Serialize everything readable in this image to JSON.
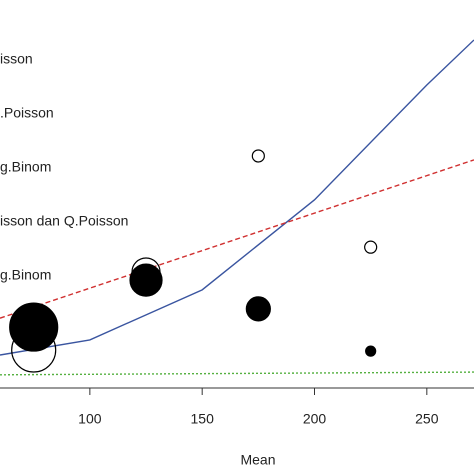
{
  "chart_data": {
    "type": "scatter",
    "x_label": "Mean",
    "legend_labels": [
      "isson",
      ".Poisson",
      "g.Binom",
      "isson dan Q.Poisson",
      "g.Binom"
    ],
    "xlim": [
      60,
      271
    ],
    "xticks": [
      100,
      150,
      200,
      250
    ],
    "ylim": [
      0,
      100
    ],
    "bubbles": [
      {
        "fill": "#000000",
        "x": [
          75,
          125,
          175,
          225
        ],
        "values": [
          15.7,
          27.8,
          20.4,
          9.5
        ],
        "sizes": [
          24,
          16,
          12,
          5
        ]
      },
      {
        "fill": "none",
        "x": [
          75,
          125,
          175,
          225
        ],
        "values": [
          9.8,
          29.9,
          59.8,
          36.3
        ],
        "sizes": [
          22,
          14,
          6,
          6
        ]
      }
    ],
    "lines": [
      {
        "color": "#3a55a0",
        "dash": "solid",
        "x": [
          60,
          100,
          150,
          200,
          250,
          271
        ],
        "values": [
          8.5,
          12.4,
          25.3,
          48.5,
          78.1,
          89.7
        ]
      },
      {
        "color": "#d03030",
        "dash": "dashed",
        "x": [
          60,
          271
        ],
        "values": [
          18.0,
          58.8
        ]
      },
      {
        "color": "#55b040",
        "dash": "dotted",
        "x": [
          60,
          271
        ],
        "values": [
          3.4,
          4.1
        ]
      }
    ]
  }
}
